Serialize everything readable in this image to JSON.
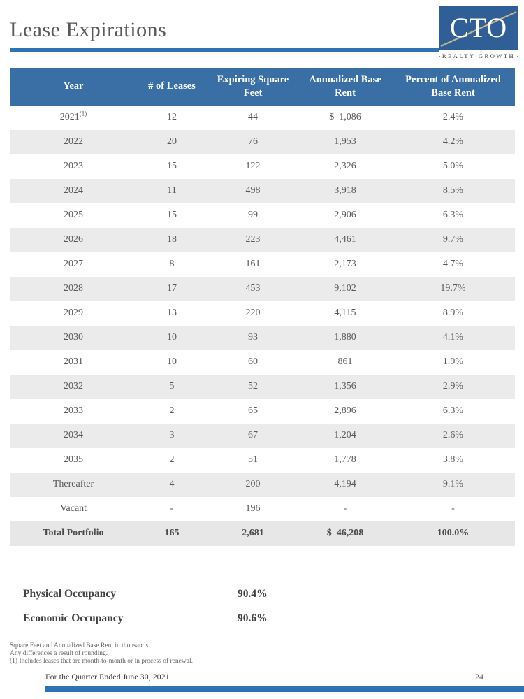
{
  "page": {
    "title": "Lease Expirations",
    "footer_text": "For the Quarter Ended June 30, 2021",
    "page_number": "24"
  },
  "logo": {
    "acronym": "CTO",
    "subtitle": "REALTY GROWTH"
  },
  "colors": {
    "header_blue": "#3A6FA5",
    "accent_bar_blue": "#2E74B5",
    "alt_row_gray": "#EBEBEB",
    "logo_blue": "#2F5F96",
    "logo_line_gold": "#C4B491"
  },
  "table": {
    "headers": [
      "Year",
      "# of Leases",
      "Expiring Square Feet",
      "Annualized Base Rent",
      "Percent of Annualized Base Rent"
    ],
    "rows": [
      {
        "year": "2021",
        "sup": "(1)",
        "leases": "12",
        "sqft": "44",
        "rent": "$  1,086",
        "pct": "2.4%"
      },
      {
        "year": "2022",
        "sup": "",
        "leases": "20",
        "sqft": "76",
        "rent": "1,953",
        "pct": "4.2%"
      },
      {
        "year": "2023",
        "sup": "",
        "leases": "15",
        "sqft": "122",
        "rent": "2,326",
        "pct": "5.0%"
      },
      {
        "year": "2024",
        "sup": "",
        "leases": "11",
        "sqft": "498",
        "rent": "3,918",
        "pct": "8.5%"
      },
      {
        "year": "2025",
        "sup": "",
        "leases": "15",
        "sqft": "99",
        "rent": "2,906",
        "pct": "6.3%"
      },
      {
        "year": "2026",
        "sup": "",
        "leases": "18",
        "sqft": "223",
        "rent": "4,461",
        "pct": "9.7%"
      },
      {
        "year": "2027",
        "sup": "",
        "leases": "8",
        "sqft": "161",
        "rent": "2,173",
        "pct": "4.7%"
      },
      {
        "year": "2028",
        "sup": "",
        "leases": "17",
        "sqft": "453",
        "rent": "9,102",
        "pct": "19.7%"
      },
      {
        "year": "2029",
        "sup": "",
        "leases": "13",
        "sqft": "220",
        "rent": "4,115",
        "pct": "8.9%"
      },
      {
        "year": "2030",
        "sup": "",
        "leases": "10",
        "sqft": "93",
        "rent": "1,880",
        "pct": "4.1%"
      },
      {
        "year": "2031",
        "sup": "",
        "leases": "10",
        "sqft": "60",
        "rent": "861",
        "pct": "1.9%"
      },
      {
        "year": "2032",
        "sup": "",
        "leases": "5",
        "sqft": "52",
        "rent": "1,356",
        "pct": "2.9%"
      },
      {
        "year": "2033",
        "sup": "",
        "leases": "2",
        "sqft": "65",
        "rent": "2,896",
        "pct": "6.3%"
      },
      {
        "year": "2034",
        "sup": "",
        "leases": "3",
        "sqft": "67",
        "rent": "1,204",
        "pct": "2.6%"
      },
      {
        "year": "2035",
        "sup": "",
        "leases": "2",
        "sqft": "51",
        "rent": "1,778",
        "pct": "3.8%"
      },
      {
        "year": "Thereafter",
        "sup": "",
        "leases": "4",
        "sqft": "200",
        "rent": "4,194",
        "pct": "9.1%"
      },
      {
        "year": "Vacant",
        "sup": "",
        "leases": "-",
        "sqft": "196",
        "rent": "-",
        "pct": "-"
      }
    ],
    "total": {
      "year": "Total Portfolio",
      "sup": "",
      "leases": "165",
      "sqft": "2,681",
      "rent": "$  46,208",
      "pct": "100.0%"
    }
  },
  "occupancy": [
    {
      "label": "Physical Occupancy",
      "value": "90.4%"
    },
    {
      "label": "Economic Occupancy",
      "value": "90.6%"
    }
  ],
  "footnotes": [
    "Square Feet and Annualized Base Rent in thousands.",
    "Any differences a result of rounding.",
    "(1)  Includes leases that are month-to-month or in process of renewal."
  ]
}
